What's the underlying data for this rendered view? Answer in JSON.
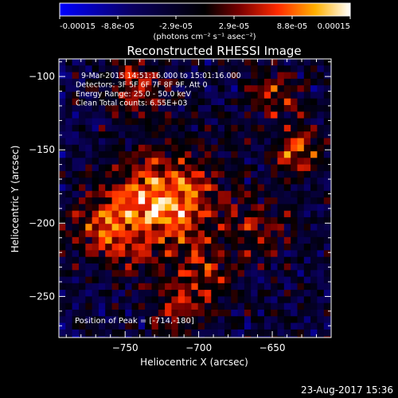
{
  "chart_data": {
    "type": "heatmap",
    "title": "Reconstructed RHESSI Image",
    "xlabel": "Heliocentric X (arcsec)",
    "ylabel": "Heliocentric Y (arcsec)",
    "xticks": [
      -750,
      -700,
      -650
    ],
    "yticks": [
      -100,
      -150,
      -200,
      -250
    ],
    "xlim": [
      -795,
      -610
    ],
    "ylim": [
      -278,
      -88
    ],
    "colorbar": {
      "ticks": [
        "-0.00015",
        "-8.8e-05",
        "-2.9e-05",
        "2.9e-05",
        "8.8e-05",
        "0.00015"
      ],
      "units": "(photons cm⁻² s⁻¹ asec⁻²)",
      "range": [
        -0.00015,
        0.00015
      ]
    },
    "info_lines": [
      "9-Mar-2015 14:51:16.000 to 15:01:16.000",
      "Detectors: 3F 5F 6F 7F 8F 9F, Att 0",
      "Energy Range: 25.0 - 50.0 keV",
      "Clean     Total counts: 6.55E+03"
    ],
    "peak_label": "Position of Peak = [-714,-180]",
    "peak": [
      -714,
      -180
    ],
    "sources": [
      {
        "x": -720,
        "y": -180,
        "amp": 0.00015,
        "sigma": 22
      },
      {
        "x": -760,
        "y": -200,
        "amp": 0.00011,
        "sigma": 20
      },
      {
        "x": -635,
        "y": -150,
        "amp": 0.00011,
        "sigma": 12
      },
      {
        "x": -745,
        "y": -105,
        "amp": 8e-05,
        "sigma": 15
      },
      {
        "x": -650,
        "y": -110,
        "amp": 8e-05,
        "sigma": 13
      },
      {
        "x": -700,
        "y": -235,
        "amp": 7e-05,
        "sigma": 18
      },
      {
        "x": -660,
        "y": -200,
        "amp": 6e-05,
        "sigma": 15
      },
      {
        "x": -720,
        "y": -260,
        "amp": 5e-05,
        "sigma": 14
      }
    ]
  },
  "footer_timestamp": "23-Aug-2017 15:36"
}
